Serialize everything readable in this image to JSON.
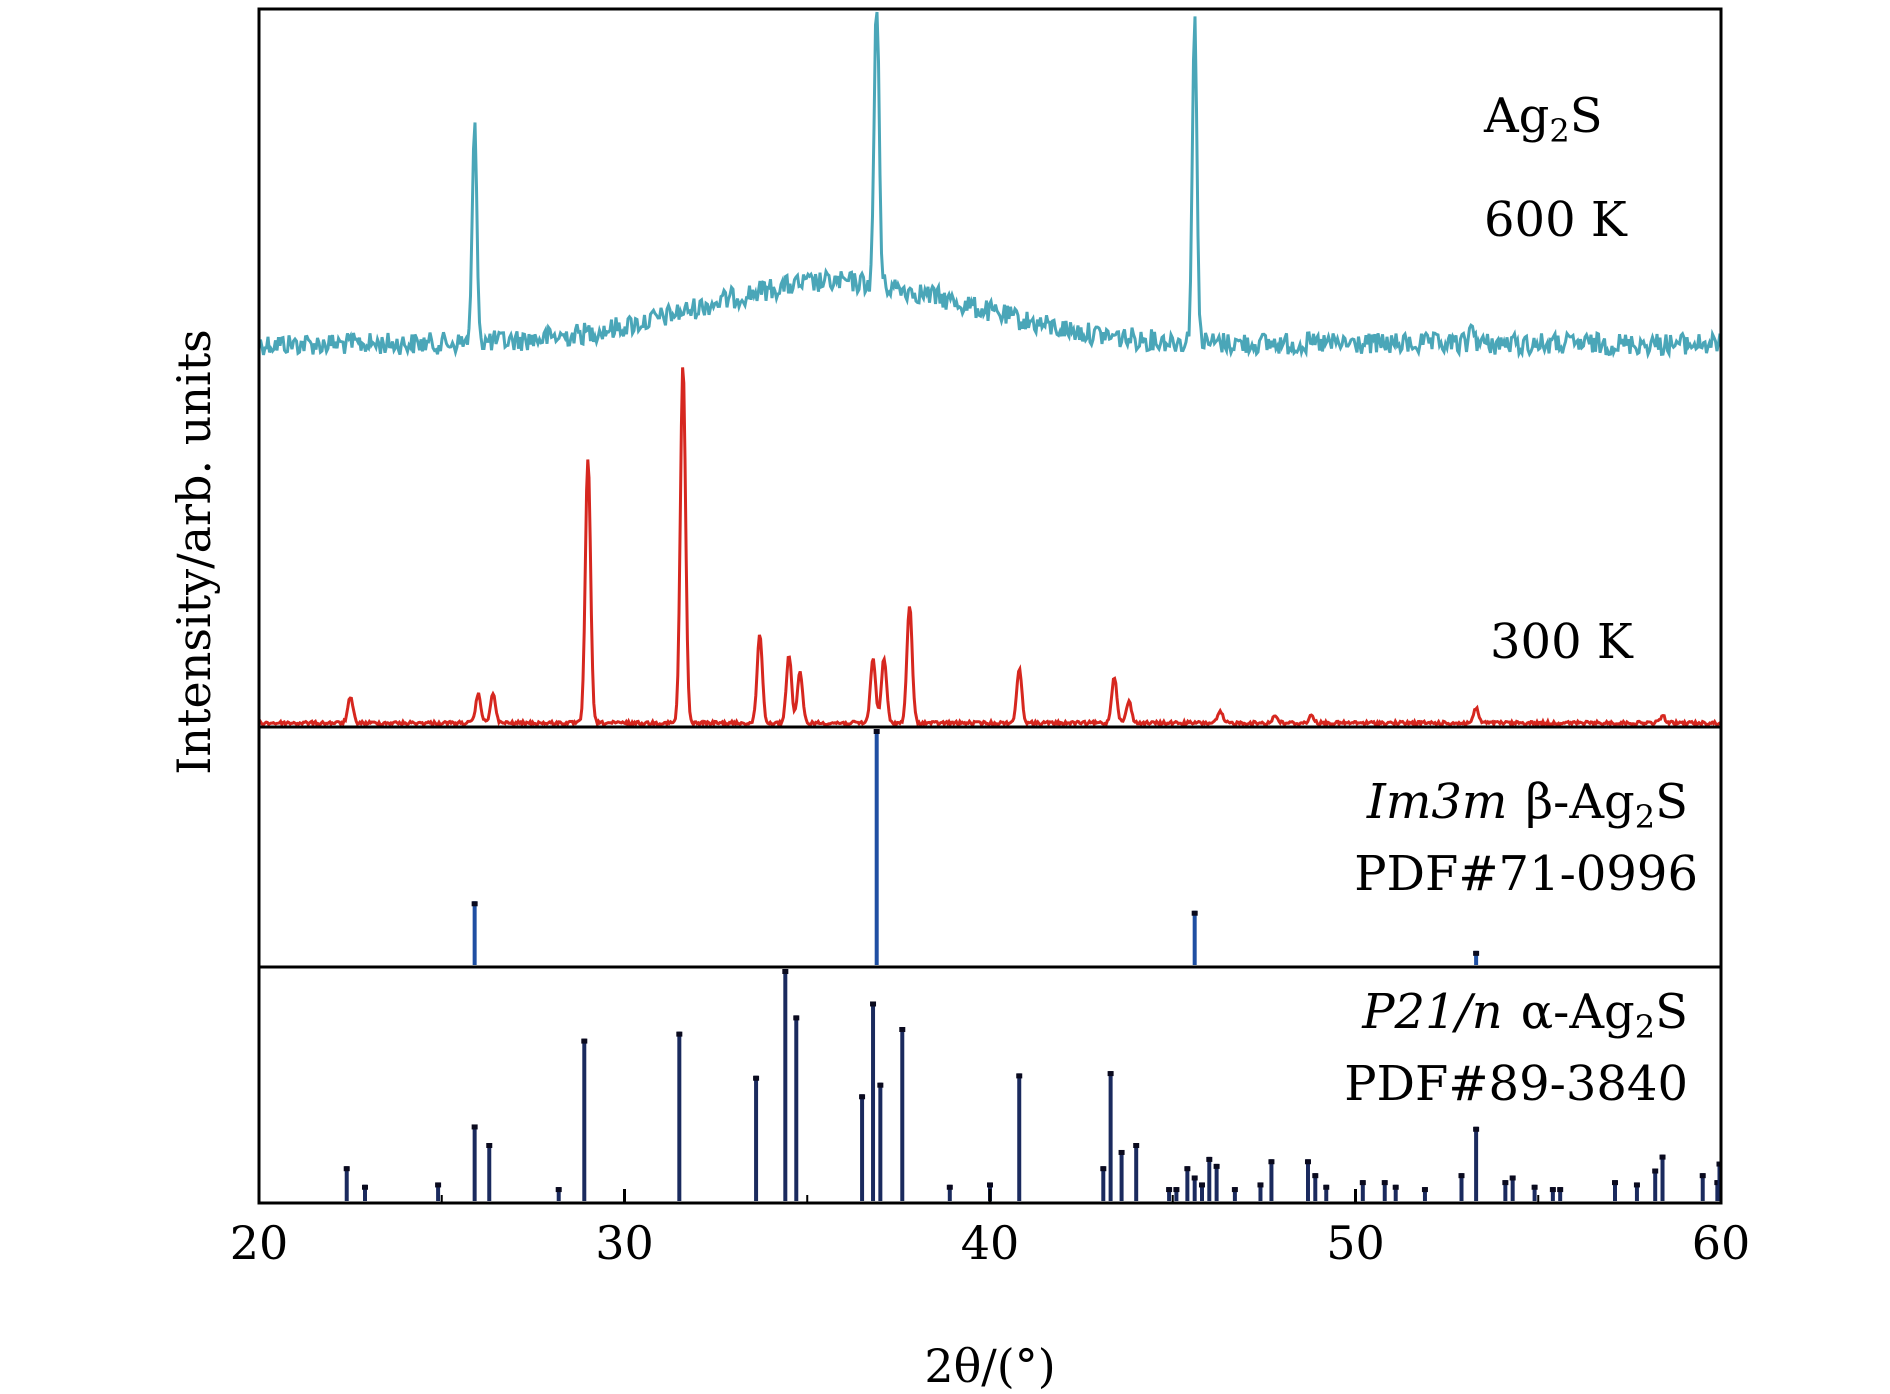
{
  "chart_data": {
    "type": "line",
    "xlabel": "2θ/(°)",
    "ylabel": "Intensity/arb. units",
    "xlim": [
      20,
      60
    ],
    "x_ticks": [
      "20",
      "30",
      "40",
      "50",
      "60"
    ],
    "y_ticks": [],
    "grid": false,
    "colors": {
      "p600": "#4aa6b8",
      "p300": "#d6271f",
      "beta": "#1f4fa3",
      "alpha": "#1a2a5e"
    },
    "annotations": {
      "ag2s": "Ag",
      "ag2s_sub": "2",
      "ag2s_end": "S",
      "t600": "600 K",
      "t300": "300 K",
      "beta_sg": "Im3m",
      "beta_phase": "β-Ag",
      "beta_sub": "2",
      "beta_end": "S",
      "beta_pdf": "PDF#71-0996",
      "alpha_sg": "P21/n",
      "alpha_phase": "α-Ag",
      "alpha_sub": "2",
      "alpha_end": "S",
      "alpha_pdf": "PDF#89-3840"
    },
    "series": [
      {
        "name": "600 K",
        "peaks": [
          {
            "x": 25.9,
            "h": 0.62
          },
          {
            "x": 36.9,
            "h": 0.87
          },
          {
            "x": 45.6,
            "h": 0.93
          },
          {
            "x": 53.2,
            "h": 0.06
          }
        ]
      },
      {
        "name": "300 K",
        "peaks": [
          {
            "x": 22.5,
            "h": 0.07
          },
          {
            "x": 26.0,
            "h": 0.08
          },
          {
            "x": 26.4,
            "h": 0.08
          },
          {
            "x": 29.0,
            "h": 0.74
          },
          {
            "x": 31.6,
            "h": 1.0
          },
          {
            "x": 33.7,
            "h": 0.25
          },
          {
            "x": 34.5,
            "h": 0.19
          },
          {
            "x": 34.8,
            "h": 0.14
          },
          {
            "x": 36.8,
            "h": 0.18
          },
          {
            "x": 37.1,
            "h": 0.18
          },
          {
            "x": 37.8,
            "h": 0.33
          },
          {
            "x": 40.8,
            "h": 0.15
          },
          {
            "x": 43.4,
            "h": 0.13
          },
          {
            "x": 43.8,
            "h": 0.06
          },
          {
            "x": 46.3,
            "h": 0.03
          },
          {
            "x": 47.8,
            "h": 0.02
          },
          {
            "x": 48.8,
            "h": 0.02
          },
          {
            "x": 53.3,
            "h": 0.04
          },
          {
            "x": 58.4,
            "h": 0.02
          }
        ]
      },
      {
        "name": "Im3m β-Ag2S PDF#71-0996",
        "sticks": [
          {
            "x": 25.9,
            "h": 0.27
          },
          {
            "x": 36.9,
            "h": 1.0
          },
          {
            "x": 45.6,
            "h": 0.23
          },
          {
            "x": 53.3,
            "h": 0.06
          }
        ]
      },
      {
        "name": "P21/n α-Ag2S PDF#89-3840",
        "sticks": [
          {
            "x": 22.4,
            "h": 0.15
          },
          {
            "x": 22.9,
            "h": 0.07
          },
          {
            "x": 24.9,
            "h": 0.08
          },
          {
            "x": 25.9,
            "h": 0.33
          },
          {
            "x": 26.3,
            "h": 0.25
          },
          {
            "x": 28.2,
            "h": 0.06
          },
          {
            "x": 28.9,
            "h": 0.7
          },
          {
            "x": 31.5,
            "h": 0.73
          },
          {
            "x": 33.6,
            "h": 0.54
          },
          {
            "x": 34.4,
            "h": 1.0
          },
          {
            "x": 34.7,
            "h": 0.8
          },
          {
            "x": 36.5,
            "h": 0.46
          },
          {
            "x": 36.8,
            "h": 0.86
          },
          {
            "x": 37.0,
            "h": 0.51
          },
          {
            "x": 37.6,
            "h": 0.75
          },
          {
            "x": 38.9,
            "h": 0.07
          },
          {
            "x": 40.0,
            "h": 0.08
          },
          {
            "x": 40.8,
            "h": 0.55
          },
          {
            "x": 43.1,
            "h": 0.15
          },
          {
            "x": 43.3,
            "h": 0.56
          },
          {
            "x": 43.6,
            "h": 0.22
          },
          {
            "x": 44.0,
            "h": 0.25
          },
          {
            "x": 44.9,
            "h": 0.06
          },
          {
            "x": 45.1,
            "h": 0.06
          },
          {
            "x": 45.4,
            "h": 0.15
          },
          {
            "x": 45.6,
            "h": 0.11
          },
          {
            "x": 45.8,
            "h": 0.08
          },
          {
            "x": 46.0,
            "h": 0.19
          },
          {
            "x": 46.2,
            "h": 0.16
          },
          {
            "x": 46.7,
            "h": 0.06
          },
          {
            "x": 47.4,
            "h": 0.08
          },
          {
            "x": 47.7,
            "h": 0.18
          },
          {
            "x": 48.7,
            "h": 0.18
          },
          {
            "x": 48.9,
            "h": 0.12
          },
          {
            "x": 49.2,
            "h": 0.07
          },
          {
            "x": 50.2,
            "h": 0.09
          },
          {
            "x": 50.8,
            "h": 0.09
          },
          {
            "x": 51.1,
            "h": 0.07
          },
          {
            "x": 51.9,
            "h": 0.06
          },
          {
            "x": 52.9,
            "h": 0.12
          },
          {
            "x": 53.3,
            "h": 0.32
          },
          {
            "x": 54.1,
            "h": 0.09
          },
          {
            "x": 54.3,
            "h": 0.11
          },
          {
            "x": 54.9,
            "h": 0.07
          },
          {
            "x": 55.4,
            "h": 0.06
          },
          {
            "x": 55.6,
            "h": 0.06
          },
          {
            "x": 57.1,
            "h": 0.09
          },
          {
            "x": 57.7,
            "h": 0.08
          },
          {
            "x": 58.2,
            "h": 0.14
          },
          {
            "x": 58.4,
            "h": 0.2
          },
          {
            "x": 59.5,
            "h": 0.12
          },
          {
            "x": 59.9,
            "h": 0.09
          },
          {
            "x": 60.0,
            "h": 0.17
          }
        ]
      }
    ]
  }
}
